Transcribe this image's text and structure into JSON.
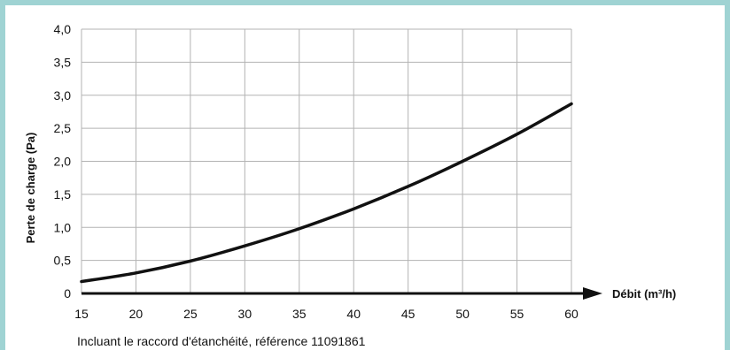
{
  "chart_data": {
    "type": "line",
    "title": "",
    "xlabel": "Débit (m³/h)",
    "ylabel": "Perte de charge (Pa)",
    "xlim": [
      15,
      60
    ],
    "ylim": [
      0,
      4.0
    ],
    "x_ticks": [
      "15",
      "20",
      "25",
      "30",
      "35",
      "40",
      "45",
      "50",
      "55",
      "60"
    ],
    "y_ticks": [
      "0",
      "0,5",
      "1,0",
      "1,5",
      "2,0",
      "2,5",
      "3,0",
      "3,5",
      "4,0"
    ],
    "grid": true,
    "series": [
      {
        "x": [
          15,
          20,
          25,
          30,
          35,
          40,
          45,
          50,
          55,
          60
        ],
        "y": [
          0.18,
          0.31,
          0.49,
          0.72,
          0.98,
          1.28,
          1.62,
          2.0,
          2.41,
          2.87
        ]
      }
    ],
    "caption": "Incluant le raccord d'étanchéité, référence 11091861"
  },
  "colors": {
    "frame": "#9fd3d3",
    "grid": "#b3b3b3",
    "line": "#111111"
  }
}
